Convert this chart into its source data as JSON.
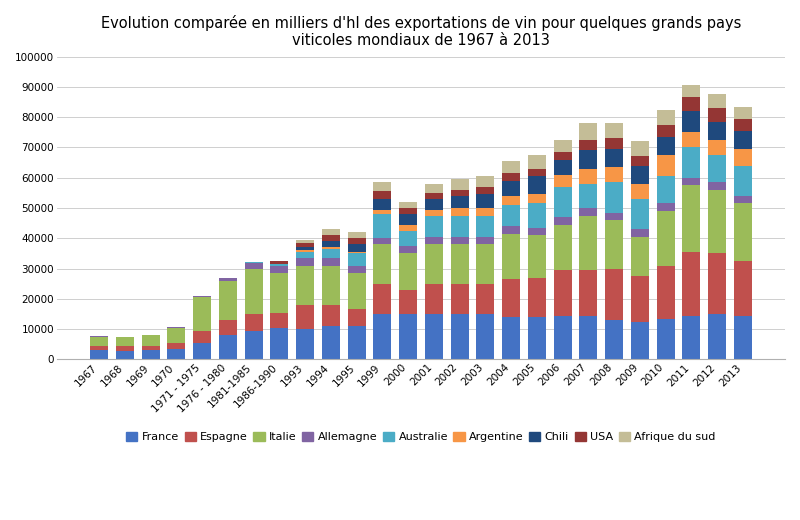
{
  "title": "Evolution comparée en milliers d'hl des exportations de vin pour quelques grands pays\nviticoles mondiaux de 1967 à 2013",
  "categories": [
    "1967",
    "1968",
    "1969",
    "1970",
    "1971 - 1975",
    "1976 - 1980",
    "1981-1985",
    "1986-1990",
    "1993",
    "1994",
    "1995",
    "1999",
    "2000",
    "2001",
    "2002",
    "2003",
    "2004",
    "2005",
    "2006",
    "2007",
    "2008",
    "2009",
    "2010",
    "2011",
    "2012",
    "2013"
  ],
  "series": {
    "France": [
      3000,
      2800,
      3000,
      3500,
      5500,
      8000,
      9500,
      10500,
      10000,
      11000,
      11000,
      15000,
      15000,
      15000,
      15000,
      15000,
      14000,
      14000,
      14500,
      14500,
      13000,
      12500,
      13500,
      14500,
      15000,
      14500
    ],
    "Espagne": [
      1500,
      1500,
      1500,
      2000,
      4000,
      5000,
      5500,
      5000,
      8000,
      7000,
      5500,
      10000,
      8000,
      10000,
      10000,
      10000,
      12500,
      13000,
      15000,
      15000,
      17000,
      15000,
      17500,
      21000,
      20000,
      18000
    ],
    "Italie": [
      3000,
      3000,
      3500,
      5000,
      11000,
      13000,
      15000,
      13000,
      13000,
      13000,
      12000,
      13000,
      12000,
      13000,
      13000,
      13000,
      15000,
      14000,
      15000,
      18000,
      16000,
      13000,
      18000,
      22000,
      21000,
      19000
    ],
    "Allemagne": [
      200,
      200,
      200,
      200,
      500,
      1000,
      2000,
      2500,
      2500,
      2500,
      2500,
      2000,
      2500,
      2500,
      2500,
      2500,
      2500,
      2500,
      2500,
      2500,
      2500,
      2500,
      2500,
      2500,
      2500,
      2500
    ],
    "Australie": [
      0,
      0,
      0,
      0,
      0,
      0,
      100,
      500,
      2000,
      3000,
      4000,
      8000,
      5000,
      7000,
      7000,
      7000,
      7000,
      8000,
      10000,
      8000,
      10000,
      10000,
      9000,
      10000,
      9000,
      10000
    ],
    "Argentine": [
      0,
      0,
      0,
      0,
      0,
      0,
      0,
      0,
      500,
      500,
      500,
      1500,
      2000,
      2000,
      2500,
      2500,
      3000,
      3000,
      4000,
      5000,
      5000,
      5000,
      7000,
      5000,
      5000,
      5500
    ],
    "Chili": [
      0,
      0,
      0,
      0,
      0,
      0,
      0,
      0,
      1000,
      2000,
      2500,
      3500,
      3500,
      3500,
      4000,
      4500,
      5000,
      6000,
      5000,
      6000,
      6000,
      6000,
      6000,
      7000,
      6000,
      6000
    ],
    "USA": [
      0,
      0,
      0,
      0,
      0,
      0,
      0,
      1000,
      1500,
      2000,
      2000,
      2500,
      2000,
      2000,
      2000,
      2500,
      2500,
      2500,
      2500,
      3500,
      3500,
      3000,
      4000,
      4500,
      4500,
      4000
    ],
    "Afrique du sud": [
      0,
      0,
      0,
      0,
      0,
      0,
      0,
      0,
      1000,
      2000,
      2000,
      3000,
      2000,
      3000,
      3500,
      3500,
      4000,
      4500,
      4000,
      5500,
      5000,
      5000,
      5000,
      4000,
      4500,
      4000
    ]
  },
  "colors": {
    "France": "#4472C4",
    "Espagne": "#C0504D",
    "Italie": "#9BBB59",
    "Allemagne": "#8064A2",
    "Australie": "#4BACC6",
    "Argentine": "#F79646",
    "Chili": "#1F497D",
    "USA": "#943634",
    "Afrique du sud": "#C4BD97"
  },
  "ylim_min": 0,
  "ylim_max": 100000,
  "yticks": [
    0,
    10000,
    20000,
    30000,
    40000,
    50000,
    60000,
    70000,
    80000,
    90000,
    100000
  ],
  "background_color": "#FFFFFF",
  "title_fontsize": 10.5,
  "legend_fontsize": 8,
  "tick_fontsize": 7.5,
  "bar_width": 0.7,
  "grid_color": "#C8C8C8",
  "legend_order": [
    "France",
    "Espagne",
    "Italie",
    "Allemagne",
    "Australie",
    "Argentine",
    "Chili",
    "USA",
    "Afrique du sud"
  ]
}
